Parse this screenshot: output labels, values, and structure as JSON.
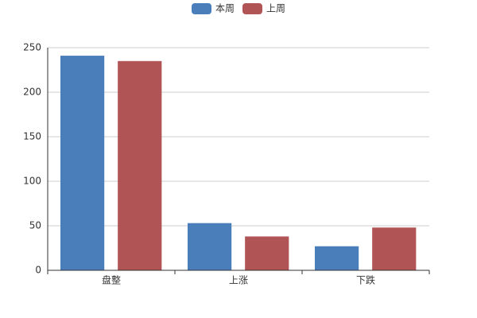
{
  "chart_data": {
    "type": "bar",
    "categories": [
      "盘整",
      "上涨",
      "下跌"
    ],
    "series": [
      {
        "name": "本周",
        "color": "#4a7ebb",
        "values": [
          241,
          53,
          27
        ]
      },
      {
        "name": "上周",
        "color": "#b05455",
        "values": [
          235,
          38,
          48
        ]
      }
    ],
    "ylim": [
      0,
      250
    ],
    "yticks": [
      0,
      50,
      100,
      150,
      200,
      250
    ],
    "grid": true,
    "legend": "top"
  }
}
